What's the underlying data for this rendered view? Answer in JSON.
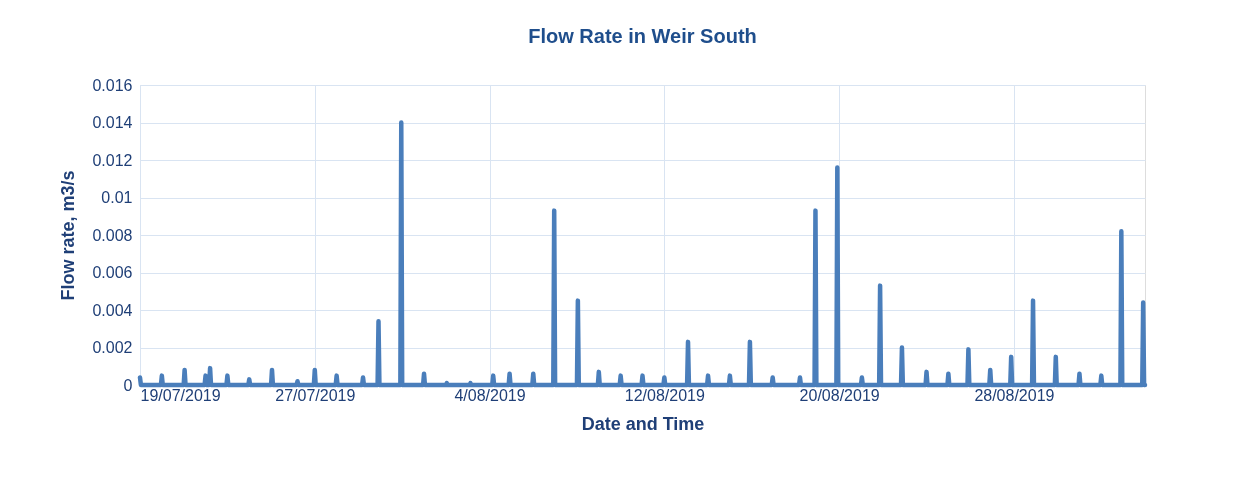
{
  "chart_data": {
    "type": "line",
    "title": "Flow Rate in Weir South",
    "xlabel": "Date and Time",
    "ylabel": "Flow rate, m3/s",
    "x": [
      "2019-07-19T00:00",
      "2019-07-19T01:00",
      "2019-07-19T23:00",
      "2019-07-20T00:00",
      "2019-07-20T01:00",
      "2019-07-21T00:00",
      "2019-07-21T01:00",
      "2019-07-21T02:00",
      "2019-07-21T23:00",
      "2019-07-22T00:00",
      "2019-07-22T01:00",
      "2019-07-22T04:00",
      "2019-07-22T05:00",
      "2019-07-22T06:00",
      "2019-07-22T23:00",
      "2019-07-23T00:00",
      "2019-07-23T01:00",
      "2019-07-23T23:00",
      "2019-07-24T00:00",
      "2019-07-24T01:00",
      "2019-07-25T00:00",
      "2019-07-25T01:00",
      "2019-07-25T02:00",
      "2019-07-26T04:00",
      "2019-07-26T05:00",
      "2019-07-26T06:00",
      "2019-07-26T23:00",
      "2019-07-27T00:00",
      "2019-07-27T01:00",
      "2019-07-27T23:00",
      "2019-07-28T00:00",
      "2019-07-28T01:00",
      "2019-07-29T04:00",
      "2019-07-29T05:00",
      "2019-07-29T06:00",
      "2019-07-29T21:00",
      "2019-07-29T22:00",
      "2019-07-29T23:00",
      "2019-07-30T22:00",
      "2019-07-30T23:00",
      "2019-07-31T00:00",
      "2019-07-31T23:00",
      "2019-08-01T00:00",
      "2019-08-01T01:00",
      "2019-08-02T00:00",
      "2019-08-02T01:00",
      "2019-08-02T02:00",
      "2019-08-03T02:00",
      "2019-08-03T03:00",
      "2019-08-03T04:00",
      "2019-08-04T03:00",
      "2019-08-04T04:00",
      "2019-08-04T05:00",
      "2019-08-04T21:00",
      "2019-08-04T22:00",
      "2019-08-04T23:00",
      "2019-08-05T23:00",
      "2019-08-06T00:00",
      "2019-08-06T01:00",
      "2019-08-06T22:00",
      "2019-08-06T23:00",
      "2019-08-07T00:00",
      "2019-08-08T00:00",
      "2019-08-08T01:00",
      "2019-08-08T02:00",
      "2019-08-08T23:00",
      "2019-08-09T00:00",
      "2019-08-09T01:00",
      "2019-08-09T23:00",
      "2019-08-10T00:00",
      "2019-08-10T01:00",
      "2019-08-10T23:00",
      "2019-08-11T00:00",
      "2019-08-11T01:00",
      "2019-08-11T23:00",
      "2019-08-12T00:00",
      "2019-08-12T01:00",
      "2019-08-13T01:00",
      "2019-08-13T02:00",
      "2019-08-13T03:00",
      "2019-08-13T23:00",
      "2019-08-14T00:00",
      "2019-08-14T01:00",
      "2019-08-14T23:00",
      "2019-08-15T00:00",
      "2019-08-15T01:00",
      "2019-08-15T21:00",
      "2019-08-15T22:00",
      "2019-08-15T23:00",
      "2019-08-16T22:00",
      "2019-08-16T23:00",
      "2019-08-17T00:00",
      "2019-08-18T04:00",
      "2019-08-18T05:00",
      "2019-08-18T06:00",
      "2019-08-18T21:00",
      "2019-08-18T22:00",
      "2019-08-18T23:00",
      "2019-08-19T21:00",
      "2019-08-19T22:00",
      "2019-08-19T23:00",
      "2019-08-21T00:00",
      "2019-08-21T01:00",
      "2019-08-21T02:00",
      "2019-08-21T20:00",
      "2019-08-21T21:00",
      "2019-08-21T22:00",
      "2019-08-22T20:00",
      "2019-08-22T21:00",
      "2019-08-22T22:00",
      "2019-08-23T23:00",
      "2019-08-24T00:00",
      "2019-08-24T01:00",
      "2019-08-24T23:00",
      "2019-08-25T00:00",
      "2019-08-25T01:00",
      "2019-08-25T21:00",
      "2019-08-25T22:00",
      "2019-08-25T23:00",
      "2019-08-26T21:00",
      "2019-08-26T22:00",
      "2019-08-26T23:00",
      "2019-08-27T20:00",
      "2019-08-27T21:00",
      "2019-08-27T22:00",
      "2019-08-28T20:00",
      "2019-08-28T21:00",
      "2019-08-28T22:00",
      "2019-08-29T21:00",
      "2019-08-29T22:00",
      "2019-08-29T23:00",
      "2019-08-30T23:00",
      "2019-08-31T00:00",
      "2019-08-31T01:00",
      "2019-08-31T23:00",
      "2019-09-01T00:00",
      "2019-09-01T01:00",
      "2019-09-01T21:00",
      "2019-09-01T22:00",
      "2019-09-01T23:00",
      "2019-09-02T21:00",
      "2019-09-02T22:00",
      "2019-09-02T23:00",
      "2019-09-03T00:00"
    ],
    "series": [
      {
        "color": "#4a7ebb",
        "values": [
          0.0004,
          0,
          0,
          0.0005,
          0,
          0,
          0.0008,
          0,
          0,
          0.0005,
          0,
          0,
          0.0009,
          0,
          0,
          0.0005,
          0,
          0,
          0.0003,
          0,
          0,
          0.0008,
          0,
          0,
          0.0002,
          0,
          0,
          0.0008,
          0,
          0,
          0.0005,
          0,
          0,
          0.0004,
          0,
          0,
          0.0034,
          0,
          0,
          0.014,
          0,
          0,
          0.0006,
          0,
          0,
          0.0001,
          0,
          0,
          0.0001,
          0,
          0,
          0.0005,
          0,
          0,
          0.0006,
          0,
          0,
          0.0006,
          0,
          0,
          0.0093,
          0,
          0,
          0.0045,
          0,
          0,
          0.0007,
          0,
          0,
          0.0005,
          0,
          0,
          0.0005,
          0,
          0,
          0.0004,
          0,
          0,
          0.0023,
          0,
          0,
          0.0005,
          0,
          0,
          0.0005,
          0,
          0,
          0.0023,
          0,
          0,
          0.0004,
          0,
          0,
          0.0004,
          0,
          0,
          0.0093,
          0,
          0,
          0.0116,
          0,
          0,
          0.0004,
          0,
          0,
          0.0053,
          0,
          0,
          0.002,
          0,
          0,
          0.0007,
          0,
          0,
          0.0006,
          0,
          0,
          0.0019,
          0,
          0,
          0.0008,
          0,
          0,
          0.0015,
          0,
          0,
          0.0045,
          0,
          0,
          0.0015,
          0,
          0,
          0.0006,
          0,
          0,
          0.0005,
          0,
          0,
          0.0082,
          0,
          0,
          0.0044,
          0,
          0
        ]
      }
    ],
    "xlim": [
      "2019-07-19T00:00",
      "2019-09-03T00:00"
    ],
    "xticks": [
      {
        "value": "2019-07-19T00:00",
        "label": "19/07/2019"
      },
      {
        "value": "2019-07-27T00:00",
        "label": "27/07/2019"
      },
      {
        "value": "2019-08-04T00:00",
        "label": "4/08/2019"
      },
      {
        "value": "2019-08-12T00:00",
        "label": "12/08/2019"
      },
      {
        "value": "2019-08-20T00:00",
        "label": "20/08/2019"
      },
      {
        "value": "2019-08-28T00:00",
        "label": "28/08/2019"
      }
    ],
    "ylim": [
      0,
      0.016
    ],
    "yticks": [
      0,
      0.002,
      0.004,
      0.006,
      0.008,
      0.01,
      0.012,
      0.014,
      0.016
    ],
    "grid": true,
    "marker": "none",
    "line_style": "solid"
  }
}
